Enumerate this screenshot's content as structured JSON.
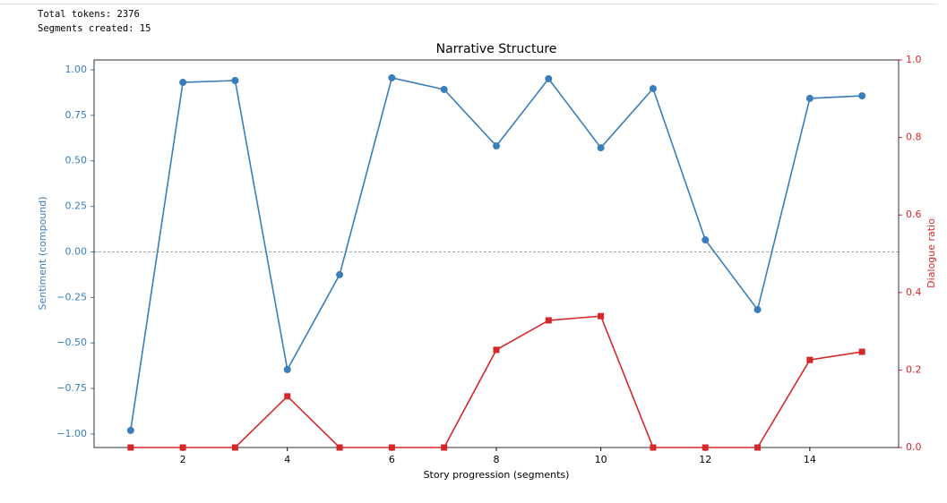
{
  "console_lines": [
    "Total tokens: 2376",
    "Segments created: 15"
  ],
  "chart_data": {
    "type": "line",
    "title": "Narrative Structure",
    "xlabel": "Story progression (segments)",
    "ylabel": "Sentiment (compound)",
    "y2label": "Dialogue ratio",
    "x": [
      1,
      2,
      3,
      4,
      5,
      6,
      7,
      8,
      9,
      10,
      11,
      12,
      13,
      14,
      15
    ],
    "series": [
      {
        "name": "Sentiment (compound)",
        "color": "#3a7dbb",
        "marker": "circle",
        "axis": "y",
        "values": [
          -0.98,
          0.931,
          0.941,
          -0.646,
          -0.125,
          0.956,
          0.892,
          0.582,
          0.951,
          0.572,
          0.897,
          0.066,
          -0.317,
          0.843,
          0.857
        ]
      },
      {
        "name": "Dialogue ratio",
        "color": "#d62728",
        "marker": "square",
        "axis": "y2",
        "values": [
          0,
          0,
          0,
          0.132,
          0,
          0,
          0,
          0.252,
          0.328,
          0.339,
          0,
          0,
          0,
          0.226,
          0.247
        ]
      }
    ],
    "xlim": [
      0.3,
      15.7
    ],
    "xticks": [
      2,
      4,
      6,
      8,
      10,
      12,
      14
    ],
    "ylim": [
      -1.074,
      1.054
    ],
    "yticks": [
      {
        "value": -1,
        "label": "−1.00"
      },
      {
        "value": -0.75,
        "label": "−0.75"
      },
      {
        "value": -0.5,
        "label": "−0.50"
      },
      {
        "value": -0.25,
        "label": "−0.25"
      },
      {
        "value": 0,
        "label": "0.00"
      },
      {
        "value": 0.25,
        "label": "0.25"
      },
      {
        "value": 0.5,
        "label": "0.50"
      },
      {
        "value": 0.75,
        "label": "0.75"
      },
      {
        "value": 1,
        "label": "1.00"
      }
    ],
    "y2lim": [
      0,
      1
    ],
    "y2ticks": [
      {
        "value": 0,
        "label": "0.0"
      },
      {
        "value": 0.2,
        "label": "0.2"
      },
      {
        "value": 0.4,
        "label": "0.4"
      },
      {
        "value": 0.6,
        "label": "0.6"
      },
      {
        "value": 0.8,
        "label": "0.8"
      },
      {
        "value": 1,
        "label": "1.0"
      }
    ],
    "hline": 0,
    "grid": false
  }
}
